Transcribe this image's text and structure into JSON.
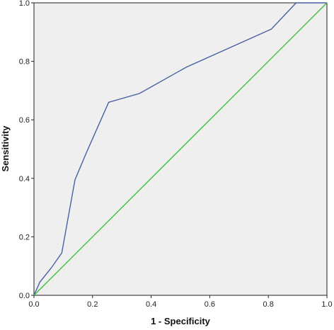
{
  "chart_data": {
    "type": "line",
    "title": "",
    "xlabel": "1 - Specificity",
    "ylabel": "Sensitivity",
    "xlim": [
      0,
      1
    ],
    "ylim": [
      0,
      1
    ],
    "x_ticks": [
      "0.0",
      "0.2",
      "0.4",
      "0.6",
      "0.8",
      "1.0"
    ],
    "y_ticks": [
      "0.0",
      "0.2",
      "0.4",
      "0.6",
      "0.8",
      "1.0"
    ],
    "grid": false,
    "legend": "none",
    "plot_background": "#efefef",
    "series": [
      {
        "color": "#4a5fa3",
        "x": [
          0.0,
          0.02,
          0.06,
          0.095,
          0.14,
          0.18,
          0.255,
          0.36,
          0.52,
          0.81,
          0.895,
          1.0
        ],
        "y": [
          0.0,
          0.045,
          0.095,
          0.145,
          0.395,
          0.49,
          0.66,
          0.69,
          0.78,
          0.91,
          1.0,
          1.0
        ]
      },
      {
        "color": "#3dbf3d",
        "x": [
          0.0,
          1.0
        ],
        "y": [
          0.0,
          1.0
        ]
      }
    ]
  }
}
